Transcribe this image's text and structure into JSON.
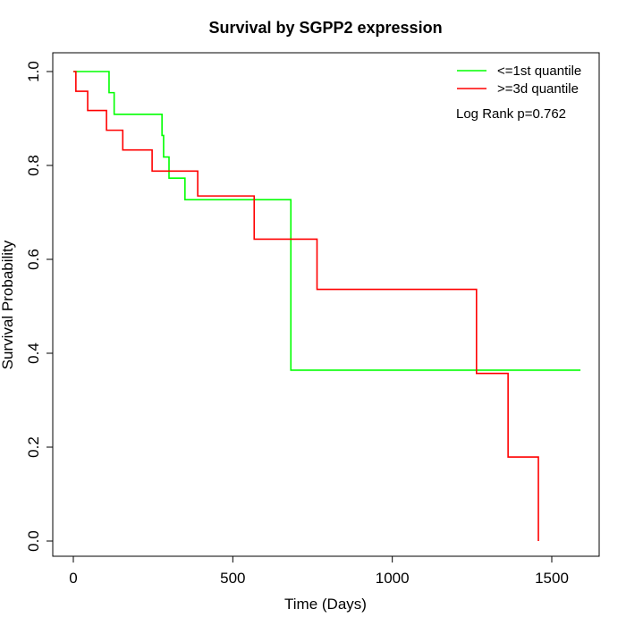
{
  "chart_data": {
    "type": "line",
    "subtype": "kaplan-meier step",
    "title": "Survival by SGPP2 expression",
    "xlabel": "Time (Days)",
    "ylabel": "Survival Probability",
    "xlim": [
      0,
      1650
    ],
    "ylim": [
      0,
      1
    ],
    "xticks": [
      0,
      500,
      1000,
      1500
    ],
    "yticks": [
      0.0,
      0.2,
      0.4,
      0.6,
      0.8,
      1.0
    ],
    "xtick_labels": [
      "0",
      "500",
      "1000",
      "1500"
    ],
    "ytick_labels": [
      "0.0",
      "0.2",
      "0.4",
      "0.6",
      "0.8",
      "1.0"
    ],
    "grid": false,
    "legend_position": "top-right",
    "annotation": "Log Rank p=0.762",
    "series": [
      {
        "name": "<=1st quantile",
        "color": "#00ff00",
        "x": [
          0,
          112,
          128,
          278,
          283,
          286,
          300,
          350,
          682,
          1590
        ],
        "y": [
          1.0,
          0.955,
          0.909,
          0.864,
          0.818,
          0.818,
          0.773,
          0.727,
          0.364,
          0.364
        ]
      },
      {
        "name": ">=3d quantile",
        "color": "#ff0000",
        "x": [
          0,
          8,
          45,
          104,
          155,
          247,
          390,
          567,
          764,
          1264,
          1363,
          1458
        ],
        "y": [
          1.0,
          0.958,
          0.917,
          0.875,
          0.833,
          0.788,
          0.735,
          0.643,
          0.536,
          0.357,
          0.179,
          0.0
        ]
      }
    ]
  }
}
